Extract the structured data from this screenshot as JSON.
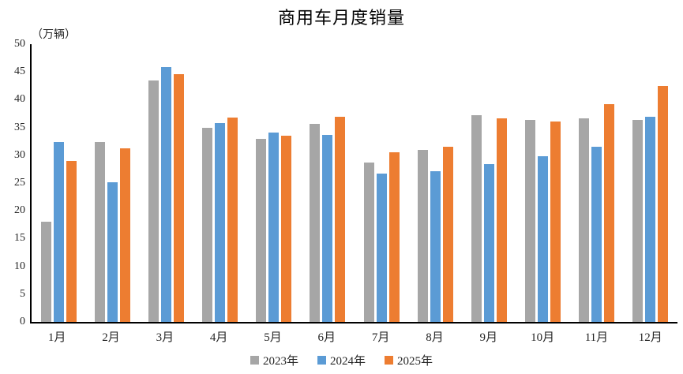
{
  "chart": {
    "title": "商用车月度销量",
    "unit_label": "（万辆）"
  },
  "chart_data": {
    "type": "bar",
    "title": "商用车月度销量",
    "ylabel": "（万辆）",
    "xlabel": "",
    "categories": [
      "1月",
      "2月",
      "3月",
      "4月",
      "5月",
      "6月",
      "7月",
      "8月",
      "9月",
      "10月",
      "11月",
      "12月"
    ],
    "series": [
      {
        "name": "2023年",
        "color": "#A6A6A6",
        "values": [
          18.0,
          32.4,
          43.5,
          35.0,
          33.0,
          35.7,
          28.7,
          31.0,
          37.2,
          36.4,
          36.6,
          36.3
        ]
      },
      {
        "name": "2024年",
        "color": "#5B9BD5",
        "values": [
          32.4,
          25.2,
          45.9,
          35.8,
          34.1,
          33.7,
          26.7,
          27.1,
          28.4,
          29.8,
          31.5,
          36.9
        ]
      },
      {
        "name": "2025年",
        "color": "#ED7D31",
        "values": [
          29.0,
          31.2,
          44.6,
          36.8,
          33.5,
          37.0,
          30.5,
          31.6,
          36.7,
          36.1,
          39.2,
          42.5
        ]
      }
    ],
    "ylim": [
      0,
      50
    ],
    "ytick_step": 5,
    "grid": false,
    "legend_position": "bottom",
    "axis_color": "#000000",
    "text_color": "#262626"
  }
}
